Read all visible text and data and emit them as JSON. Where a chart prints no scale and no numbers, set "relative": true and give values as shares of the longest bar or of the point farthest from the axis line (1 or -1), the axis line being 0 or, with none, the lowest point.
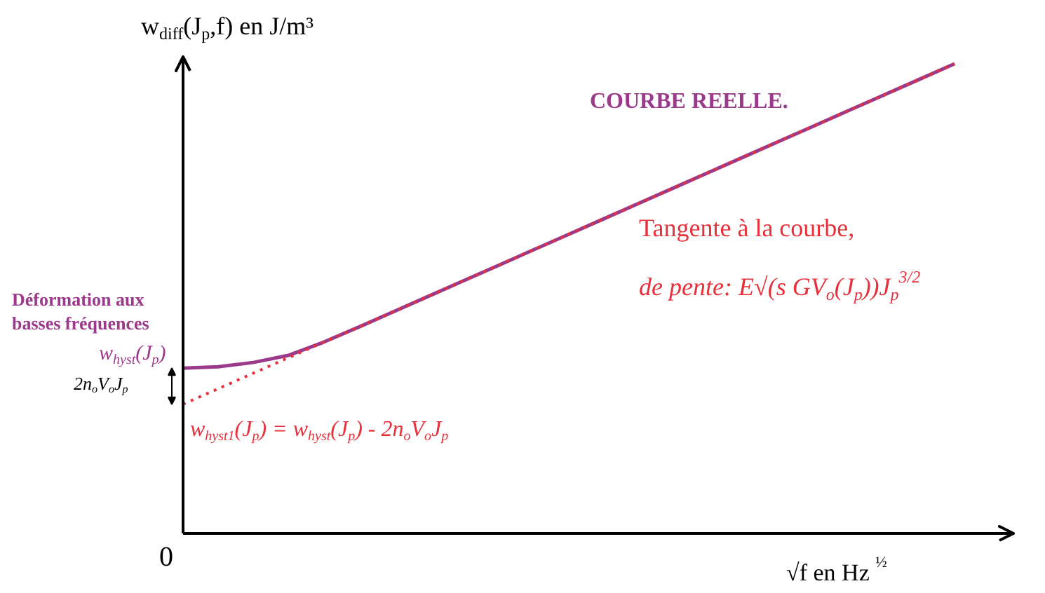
{
  "chart_data": {
    "type": "line",
    "relative": true,
    "ylabel": "w$_{diff}$(J$_{p}$,f) en J/m³",
    "xlabel": "√f  en Hz$^{½}$",
    "categories": [
      null,
      null,
      null,
      null,
      null,
      null,
      null,
      null,
      null,
      null,
      null,
      null,
      null,
      null,
      null,
      null,
      null,
      null,
      null,
      null,
      null,
      null,
      null
    ],
    "series": [
      {
        "name": "COURBE REELLE.",
        "color": "#9b3a8b",
        "line_style": "solid",
        "values": [
          0.352,
          0.355,
          0.364,
          0.379,
          0.407,
          0.439,
          0.472,
          0.505,
          0.538,
          0.571,
          0.604,
          0.637,
          0.67,
          0.703,
          0.736,
          0.769,
          0.802,
          0.835,
          0.868,
          0.901,
          0.934,
          0.967,
          1.0
        ]
      },
      {
        "color": "#e8303a",
        "line_style": "dotted",
        "values": [
          0.275,
          0.308,
          0.341,
          0.374,
          0.407,
          0.439,
          0.472,
          0.505,
          0.538,
          0.571,
          0.604,
          0.637,
          0.67,
          0.703,
          0.736,
          0.769,
          0.802,
          0.835,
          0.868,
          0.901,
          0.934,
          0.967,
          1.0
        ]
      }
    ],
    "annotations": [
      "Tangente à la courbe,",
      "de pente: E√(s GV$_{o}$(J$_{p}$))J$_{p}$$^{3/2}$",
      "Déformation aux",
      "basses fréquences",
      "w$_{hyst}$(J$_{p}$)",
      "2n$_{o}$V$_{o}$J$_{p}$",
      "w$_{hyst1}$(J$_{p}$) = w$_{hyst}$(J$_{p}$) - 2n$_{o}$V$_{o}$J$_{p}$",
      "0"
    ]
  }
}
